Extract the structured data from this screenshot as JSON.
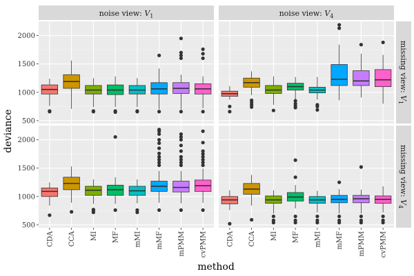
{
  "chart_data": {
    "type": "box",
    "xlabel": "method",
    "ylabel": "deviance",
    "categories": [
      "CDA",
      "CCA",
      "MI",
      "MF",
      "mMI",
      "mMF",
      "mPMM",
      "cvPMM"
    ],
    "colors": [
      "#F8766D",
      "#CD9600",
      "#7CAE00",
      "#00BE67",
      "#00BFC4",
      "#00A9FF",
      "#C77CFF",
      "#FF61CC"
    ],
    "col_strips": [
      {
        "prefix": "noise view: ",
        "var": "V",
        "sub": "1"
      },
      {
        "prefix": "noise view: ",
        "var": "V",
        "sub": "4"
      }
    ],
    "row_strips": [
      {
        "prefix": "missing view: ",
        "var": "V",
        "sub": "1"
      },
      {
        "prefix": "missing view: ",
        "var": "V",
        "sub": "4"
      }
    ],
    "ylim": [
      450,
      2250
    ],
    "yticks": [
      500,
      1000,
      1500,
      2000
    ],
    "ytick_labels": [
      "500",
      "1000",
      "1500",
      "2000"
    ],
    "panels": [
      {
        "row": 0,
        "col": 0,
        "boxes": [
          {
            "q1": 970,
            "med": 1050,
            "q3": 1130,
            "lo": 760,
            "hi": 1240,
            "out": [
              660,
              670
            ]
          },
          {
            "q1": 1070,
            "med": 1190,
            "q3": 1310,
            "lo": 710,
            "hi": 1560,
            "out": []
          },
          {
            "q1": 970,
            "med": 1040,
            "q3": 1120,
            "lo": 740,
            "hi": 1250,
            "out": [
              660,
              670
            ]
          },
          {
            "q1": 960,
            "med": 1040,
            "q3": 1130,
            "lo": 740,
            "hi": 1280,
            "out": [
              650,
              670
            ]
          },
          {
            "q1": 970,
            "med": 1040,
            "q3": 1120,
            "lo": 740,
            "hi": 1250,
            "out": [
              660,
              670
            ]
          },
          {
            "q1": 970,
            "med": 1060,
            "q3": 1170,
            "lo": 700,
            "hi": 1420,
            "out": [
              660,
              1650
            ]
          },
          {
            "q1": 980,
            "med": 1070,
            "q3": 1170,
            "lo": 700,
            "hi": 1310,
            "out": [
              660,
              1600,
              1650,
              1700,
              1950
            ]
          },
          {
            "q1": 970,
            "med": 1060,
            "q3": 1150,
            "lo": 720,
            "hi": 1280,
            "out": [
              660,
              1600,
              1680,
              1760
            ]
          }
        ]
      },
      {
        "row": 0,
        "col": 1,
        "boxes": [
          {
            "q1": 930,
            "med": 975,
            "q3": 1020,
            "lo": 870,
            "hi": 1110,
            "out": [
              660,
              750
            ]
          },
          {
            "q1": 1090,
            "med": 1170,
            "q3": 1250,
            "lo": 950,
            "hi": 1370,
            "out": [
              740,
              780,
              820,
              860
            ]
          },
          {
            "q1": 980,
            "med": 1040,
            "q3": 1120,
            "lo": 780,
            "hi": 1280,
            "out": [
              680
            ]
          },
          {
            "q1": 1040,
            "med": 1100,
            "q3": 1160,
            "lo": 880,
            "hi": 1270,
            "out": [
              730,
              760,
              800,
              850
            ]
          },
          {
            "q1": 990,
            "med": 1040,
            "q3": 1090,
            "lo": 870,
            "hi": 1270,
            "out": [
              690,
              750,
              780
            ]
          },
          {
            "q1": 1120,
            "med": 1230,
            "q3": 1490,
            "lo": 860,
            "hi": 1840,
            "out": [
              2130,
              2190
            ]
          },
          {
            "q1": 1120,
            "med": 1200,
            "q3": 1380,
            "lo": 910,
            "hi": 1680,
            "out": [
              1840
            ]
          },
          {
            "q1": 1100,
            "med": 1220,
            "q3": 1400,
            "lo": 800,
            "hi": 1660,
            "out": [
              1880
            ]
          }
        ]
      },
      {
        "row": 1,
        "col": 0,
        "boxes": [
          {
            "q1": 1000,
            "med": 1090,
            "q3": 1150,
            "lo": 840,
            "hi": 1250,
            "out": [
              670
            ]
          },
          {
            "q1": 1120,
            "med": 1230,
            "q3": 1340,
            "lo": 890,
            "hi": 1530,
            "out": [
              730
            ]
          },
          {
            "q1": 1020,
            "med": 1110,
            "q3": 1180,
            "lo": 870,
            "hi": 1300,
            "out": [
              720,
              750,
              770
            ]
          },
          {
            "q1": 1020,
            "med": 1120,
            "q3": 1200,
            "lo": 870,
            "hi": 1340,
            "out": [
              760,
              2050
            ]
          },
          {
            "q1": 1020,
            "med": 1100,
            "q3": 1180,
            "lo": 880,
            "hi": 1300,
            "out": [
              720,
              760
            ]
          },
          {
            "q1": 1090,
            "med": 1180,
            "q3": 1270,
            "lo": 890,
            "hi": 1450,
            "out": [
              760,
              1550,
              1600,
              1650,
              1700,
              1760,
              1850,
              1940,
              2000,
              2100,
              2150,
              2180
            ]
          },
          {
            "q1": 1080,
            "med": 1160,
            "q3": 1270,
            "lo": 880,
            "hi": 1450,
            "out": [
              760,
              1550,
              1600,
              1650,
              1700,
              1800,
              1900,
              2000,
              2050,
              2100
            ]
          },
          {
            "q1": 1090,
            "med": 1190,
            "q3": 1290,
            "lo": 890,
            "hi": 1490,
            "out": [
              760,
              1550,
              1600,
              1650,
              1700,
              1750,
              1800,
              1950,
              2150
            ]
          }
        ]
      },
      {
        "row": 1,
        "col": 1,
        "boxes": [
          {
            "q1": 870,
            "med": 940,
            "q3": 1000,
            "lo": 760,
            "hi": 1110,
            "out": [
              520
            ]
          },
          {
            "q1": 1040,
            "med": 1130,
            "q3": 1230,
            "lo": 840,
            "hi": 1380,
            "out": [
              590
            ]
          },
          {
            "q1": 880,
            "med": 940,
            "q3": 1010,
            "lo": 700,
            "hi": 1110,
            "out": [
              540,
              580,
              650
            ]
          },
          {
            "q1": 920,
            "med": 990,
            "q3": 1070,
            "lo": 790,
            "hi": 1200,
            "out": [
              540,
              580,
              650,
              1340,
              1640
            ]
          },
          {
            "q1": 880,
            "med": 940,
            "q3": 1000,
            "lo": 720,
            "hi": 1100,
            "out": [
              540,
              580,
              650
            ]
          },
          {
            "q1": 890,
            "med": 950,
            "q3": 1020,
            "lo": 700,
            "hi": 1130,
            "out": [
              540,
              580,
              650,
              1250
            ]
          },
          {
            "q1": 890,
            "med": 960,
            "q3": 1020,
            "lo": 700,
            "hi": 1120,
            "out": [
              540,
              580,
              650,
              1520
            ]
          },
          {
            "q1": 880,
            "med": 950,
            "q3": 1010,
            "lo": 720,
            "hi": 1180,
            "out": [
              540,
              580,
              650
            ]
          }
        ]
      }
    ]
  }
}
